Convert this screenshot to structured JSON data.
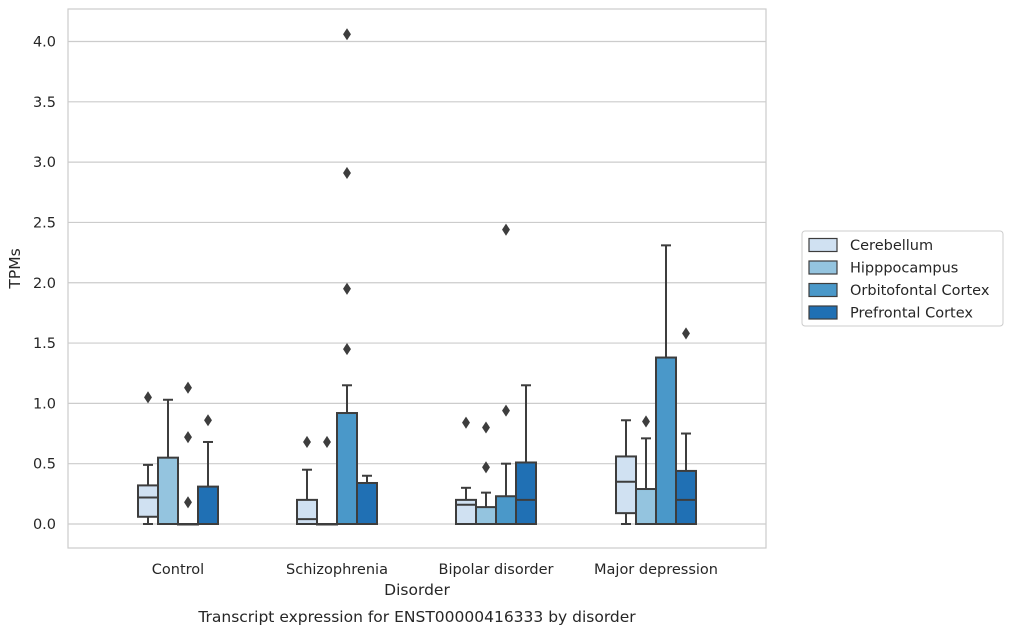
{
  "chart_data": {
    "type": "box",
    "caption": "Transcript expression for ENST00000416333 by disorder",
    "xlabel": "Disorder",
    "ylabel": "TPMs",
    "ylim": [
      -0.2,
      4.27
    ],
    "yticks": [
      0.0,
      0.5,
      1.0,
      1.5,
      2.0,
      2.5,
      3.0,
      3.5,
      4.0
    ],
    "ytick_labels": [
      "0.0",
      "0.5",
      "1.0",
      "1.5",
      "2.0",
      "2.5",
      "3.0",
      "3.5",
      "4.0"
    ],
    "grid": true,
    "legend_placement": "right",
    "categories": [
      "Control",
      "Schizophrenia",
      "Bipolar disorder",
      "Major depression"
    ],
    "series": [
      {
        "name": "Cerebellum",
        "color": "#d0e1f2",
        "boxes": [
          {
            "whislo": 0.0,
            "q1": 0.06,
            "med": 0.22,
            "q3": 0.32,
            "whishi": 0.49,
            "fliers": [
              1.05
            ]
          },
          {
            "whislo": 0.0,
            "q1": 0.0,
            "med": 0.04,
            "q3": 0.2,
            "whishi": 0.45,
            "fliers": [
              0.68
            ]
          },
          {
            "whislo": 0.0,
            "q1": 0.0,
            "med": 0.16,
            "q3": 0.2,
            "whishi": 0.3,
            "fliers": [
              0.84
            ]
          },
          {
            "whislo": 0.0,
            "q1": 0.09,
            "med": 0.35,
            "q3": 0.56,
            "whishi": 0.86,
            "fliers": []
          }
        ]
      },
      {
        "name": "Hipppocampus",
        "color": "#94c4df",
        "boxes": [
          {
            "whislo": 0.0,
            "q1": 0.0,
            "med": 0.0,
            "q3": 0.55,
            "whishi": 1.03,
            "fliers": []
          },
          {
            "whislo": 0.0,
            "q1": 0.0,
            "med": 0.0,
            "q3": 0.0,
            "whishi": 0.0,
            "fliers": [
              0.68
            ]
          },
          {
            "whislo": 0.0,
            "q1": 0.0,
            "med": 0.0,
            "q3": 0.14,
            "whishi": 0.26,
            "fliers": [
              0.8,
              0.47
            ]
          },
          {
            "whislo": 0.0,
            "q1": 0.0,
            "med": 0.0,
            "q3": 0.29,
            "whishi": 0.71,
            "fliers": [
              0.85
            ]
          }
        ]
      },
      {
        "name": "Orbitofontal Cortex",
        "color": "#4a98c9",
        "boxes": [
          {
            "whislo": 0.0,
            "q1": 0.0,
            "med": 0.0,
            "q3": 0.0,
            "whishi": 0.0,
            "fliers": [
              1.13,
              0.72,
              0.18
            ]
          },
          {
            "whislo": 0.0,
            "q1": 0.0,
            "med": 0.0,
            "q3": 0.92,
            "whishi": 1.15,
            "fliers": [
              4.06,
              2.91,
              1.95,
              1.45
            ]
          },
          {
            "whislo": 0.0,
            "q1": 0.0,
            "med": 0.0,
            "q3": 0.23,
            "whishi": 0.5,
            "fliers": [
              2.44,
              0.94
            ]
          },
          {
            "whislo": 0.0,
            "q1": 0.0,
            "med": 0.0,
            "q3": 1.38,
            "whishi": 2.31,
            "fliers": []
          }
        ]
      },
      {
        "name": "Prefrontal Cortex",
        "color": "#2070b4",
        "boxes": [
          {
            "whislo": 0.0,
            "q1": 0.0,
            "med": 0.0,
            "q3": 0.31,
            "whishi": 0.68,
            "fliers": [
              0.86
            ]
          },
          {
            "whislo": 0.0,
            "q1": 0.0,
            "med": 0.0,
            "q3": 0.34,
            "whishi": 0.4,
            "fliers": []
          },
          {
            "whislo": 0.0,
            "q1": 0.0,
            "med": 0.2,
            "q3": 0.51,
            "whishi": 1.15,
            "fliers": []
          },
          {
            "whislo": 0.0,
            "q1": 0.0,
            "med": 0.2,
            "q3": 0.44,
            "whishi": 0.75,
            "fliers": [
              1.58
            ]
          }
        ]
      }
    ]
  }
}
